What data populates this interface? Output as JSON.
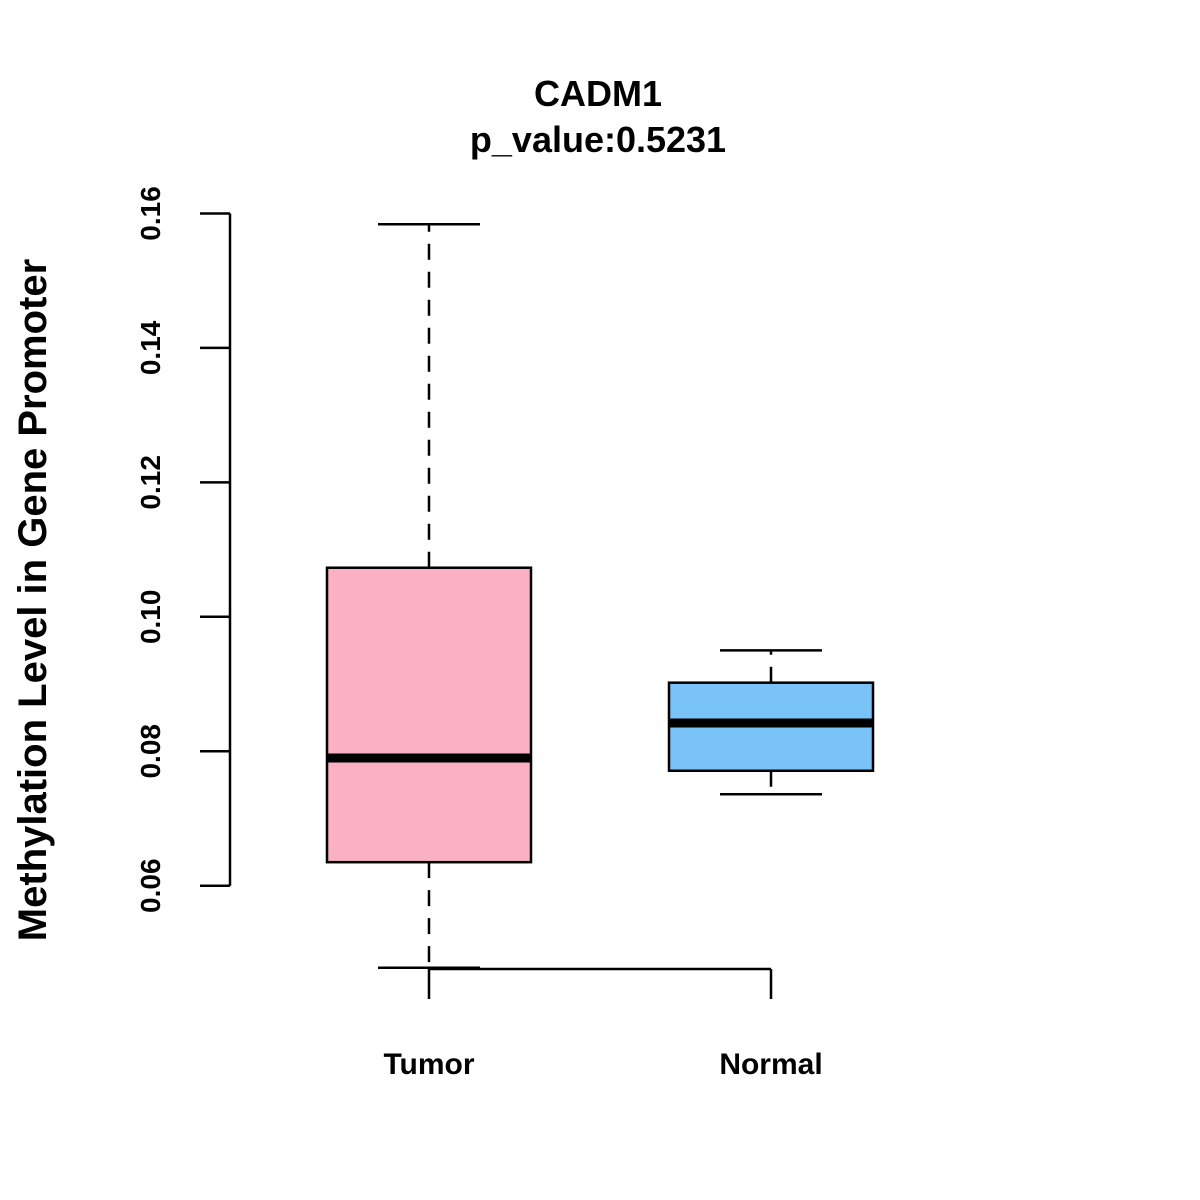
{
  "chart_data": {
    "type": "box",
    "title": "CADM1",
    "subtitle": "p_value:0.5231",
    "xlabel": "",
    "ylabel": "Methylation Level in Gene Promoter",
    "ylim": [
      0.043,
      0.162
    ],
    "yticks": [
      0.06,
      0.08,
      0.1,
      0.12,
      0.14,
      0.16
    ],
    "ytick_labels": [
      "0.06",
      "0.08",
      "0.10",
      "0.12",
      "0.14",
      "0.16"
    ],
    "categories": [
      "Tumor",
      "Normal"
    ],
    "series": [
      {
        "name": "Tumor",
        "min": 0.0478,
        "q1": 0.0635,
        "median": 0.079,
        "q3": 0.1073,
        "max": 0.1584,
        "color": "#FBB1C3"
      },
      {
        "name": "Normal",
        "min": 0.0736,
        "q1": 0.0771,
        "median": 0.0842,
        "q3": 0.0902,
        "max": 0.095,
        "color": "#7AC3F8"
      }
    ],
    "grid": false,
    "legend": "none"
  }
}
